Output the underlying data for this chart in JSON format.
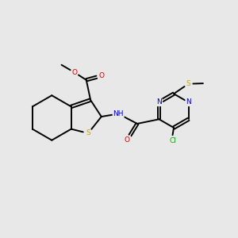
{
  "bg_color": "#e8e8e8",
  "bond_color": "#000000",
  "bond_width": 1.4,
  "atom_colors": {
    "N": "#0000cc",
    "O": "#cc0000",
    "S": "#bbaa00",
    "Cl": "#00aa00"
  },
  "font_size": 6.5,
  "dbo": 0.06
}
